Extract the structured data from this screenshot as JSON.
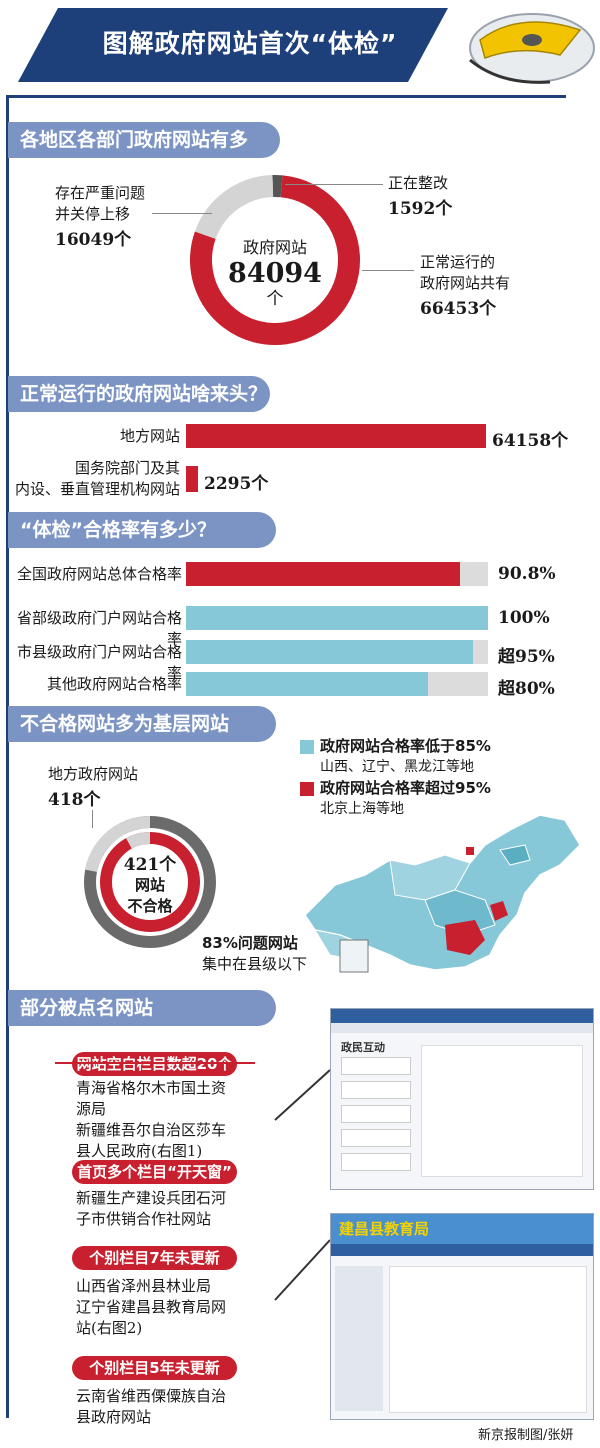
{
  "title": "图解政府网站首次“体检”",
  "sections": {
    "s1": "各地区各部门政府网站有多少？",
    "s2": "正常运行的政府网站啥来头？",
    "s3": "“体检”合格率有多少？",
    "s4": "不合格网站多为基层网站",
    "s5": "部分被点名网站"
  },
  "donut1": {
    "center_label": "政府网站",
    "total": "84094",
    "unit": "个",
    "closed_label_1": "存在严重问题",
    "closed_label_2": "并关停上移",
    "closed_value": "16049个",
    "rect_label": "正在整改",
    "rect_value": "1592个",
    "normal_label_1": "正常运行的",
    "normal_label_2": "政府网站共有",
    "normal_value": "66453个"
  },
  "chart_data": [
    {
      "type": "pie",
      "categories": [
        "正常运行",
        "存在严重问题并关停上移",
        "正在整改"
      ],
      "values": [
        66453,
        16049,
        1592
      ],
      "colors": [
        "#c8202e",
        "#d4d4d4",
        "#555555"
      ]
    },
    {
      "type": "bar",
      "categories": [
        "地方网站",
        "国务院部门及其内设、垂直管理机构网站"
      ],
      "values": [
        64158,
        2295
      ]
    },
    {
      "type": "bar",
      "categories": [
        "全国政府网站总体合格率",
        "省部级政府门户网站合格率",
        "市县级政府门户网站合格率",
        "其他政府网站合格率"
      ],
      "values": [
        90.8,
        100,
        95,
        80
      ]
    },
    {
      "type": "pie",
      "categories": [
        "地方政府网站",
        "其他"
      ],
      "values": [
        418,
        3
      ]
    }
  ],
  "bars1": [
    {
      "label_1": "地方网站",
      "label_2": "",
      "value": "64158个"
    },
    {
      "label_1": "国务院部门及其",
      "label_2": "内设、垂直管理机构网站",
      "value": "2295个"
    }
  ],
  "bars2": [
    {
      "label": "全国政府网站总体合格率",
      "value": "90.8%"
    },
    {
      "label": "省部级政府门户网站合格率",
      "value": "100%"
    },
    {
      "label": "市县级政府门户网站合格率",
      "value": "超95%"
    },
    {
      "label": "其他政府网站合格率",
      "value": "超80%"
    }
  ],
  "sec4": {
    "local_label": "地方政府网站",
    "local_value": "418个",
    "center_1": "421个",
    "center_2": "网站",
    "center_3": "不合格",
    "county_1": "83%问题网站",
    "county_2": "集中在县级以下",
    "legend_low_1": "政府网站合格率低于85%",
    "legend_low_2": "山西、辽宁、黑龙江等地",
    "legend_high_1": "政府网站合格率超过95%",
    "legend_high_2": "北京上海等地"
  },
  "named": [
    {
      "tag": "网站空白栏目数超20个",
      "lines": [
        "青海省格尔木市国土资",
        "源局",
        "新疆维吾尔自治区莎车",
        "县人民政府(右图1)"
      ]
    },
    {
      "tag": "首页多个栏目“开天窗”",
      "lines": [
        "新疆生产建设兵团石河",
        "子市供销合作社网站"
      ]
    },
    {
      "tag": "个别栏目7年未更新",
      "lines": [
        "山西省泽州县林业局",
        "辽宁省建昌县教育局网",
        "站(右图2)"
      ]
    },
    {
      "tag": "个别栏目5年未更新",
      "lines": [
        "云南省维西傈僳族自治",
        "县政府网站"
      ]
    }
  ],
  "screenshot1": {
    "header": "政民互动"
  },
  "screenshot2": {
    "header": "建昌县教育局"
  },
  "credit": "新京报制图/张妍",
  "colors": {
    "red": "#c8202e",
    "cyan": "#86c7d8",
    "navy": "#1d3f7a",
    "section": "#7b94c4",
    "gray": "#d4d4d4"
  }
}
